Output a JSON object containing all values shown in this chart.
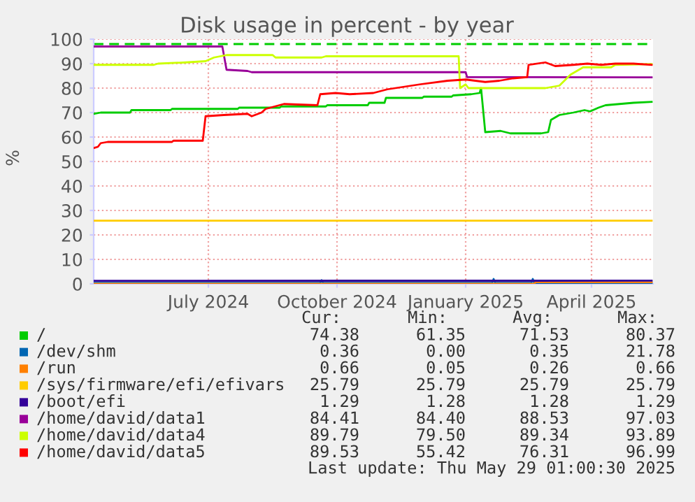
{
  "chart_data": {
    "type": "line",
    "title": "Disk usage in percent - by year",
    "ylabel": "%",
    "xlim": [
      "2024-04-10",
      "2025-05-15"
    ],
    "ylim": [
      0,
      100
    ],
    "yticks": [
      0,
      10,
      20,
      30,
      40,
      50,
      60,
      70,
      80,
      90,
      100
    ],
    "xticks": [
      {
        "value": "2024-07-01",
        "label": "July 2024"
      },
      {
        "value": "2024-10-01",
        "label": "October 2024"
      },
      {
        "value": "2025-01-01",
        "label": "January 2025"
      },
      {
        "value": "2025-04-01",
        "label": "April 2025"
      }
    ],
    "grid": true,
    "legend": "bottom",
    "line_style": "solid",
    "marker": "none",
    "ref_lines": [
      {
        "axis": "y",
        "value": 98,
        "label": null,
        "color": "#00cc00",
        "line_style": "dashed"
      }
    ],
    "series": [
      {
        "name": "/",
        "color": "#00cc00",
        "x": [
          "2024-04-10",
          "2024-04-15",
          "2024-05-06",
          "2024-05-07",
          "2024-06-04",
          "2024-06-05",
          "2024-07-22",
          "2024-07-23",
          "2024-08-21",
          "2024-08-22",
          "2024-09-23",
          "2024-09-24",
          "2024-10-23",
          "2024-10-24",
          "2024-11-04",
          "2024-11-05",
          "2024-12-01",
          "2024-12-02",
          "2024-12-22",
          "2024-12-23",
          "2025-01-05",
          "2025-01-11",
          "2025-01-12",
          "2025-01-15",
          "2025-01-26",
          "2025-02-02",
          "2025-02-24",
          "2025-03-01",
          "2025-03-03",
          "2025-03-09",
          "2025-03-19",
          "2025-03-27",
          "2025-03-31",
          "2025-04-06",
          "2025-04-11",
          "2025-04-21",
          "2025-05-01",
          "2025-05-14"
        ],
        "values": [
          69.5,
          70,
          70,
          71,
          71,
          71.5,
          71.5,
          72,
          72,
          72.5,
          72.5,
          73,
          73,
          74,
          74,
          76,
          76,
          76.5,
          76.5,
          77,
          77.5,
          78,
          80,
          62,
          62.5,
          61.5,
          61.5,
          62,
          67,
          69,
          70,
          71,
          70.5,
          72,
          73,
          73.5,
          74,
          74.4
        ]
      },
      {
        "name": "/dev/shm",
        "color": "#0066b3",
        "x": [
          "2024-04-10",
          "2024-09-19",
          "2024-09-20",
          "2024-09-21",
          "2025-01-20",
          "2025-01-21",
          "2025-01-22",
          "2025-02-17",
          "2025-02-18",
          "2025-02-19",
          "2025-05-14"
        ],
        "values": [
          0.4,
          0.4,
          1.5,
          0.4,
          0.4,
          2,
          0.4,
          0.4,
          2,
          0.4,
          0.4
        ]
      },
      {
        "name": "/run",
        "color": "#ff8000",
        "x": [
          "2024-04-10",
          "2025-02-19",
          "2025-02-20",
          "2025-05-14"
        ],
        "values": [
          0.05,
          0.05,
          0.66,
          0.66
        ]
      },
      {
        "name": "/sys/firmware/efi/efivars",
        "color": "#ffcc00",
        "x": [
          "2024-04-10",
          "2025-05-14"
        ],
        "values": [
          25.79,
          25.79
        ]
      },
      {
        "name": "/boot/efi",
        "color": "#330099",
        "x": [
          "2024-04-10",
          "2025-05-14"
        ],
        "values": [
          1.28,
          1.29
        ]
      },
      {
        "name": "/home/david/data1",
        "color": "#990099",
        "x": [
          "2024-04-10",
          "2024-07-11",
          "2024-07-14",
          "2024-07-29",
          "2024-08-01",
          "2025-01-01",
          "2025-01-02",
          "2025-05-14"
        ],
        "values": [
          97,
          97,
          87.5,
          87,
          86.5,
          86.5,
          84.5,
          84.4
        ]
      },
      {
        "name": "/home/david/data4",
        "color": "#ccff00",
        "x": [
          "2024-04-10",
          "2024-05-23",
          "2024-05-26",
          "2024-06-15",
          "2024-06-29",
          "2024-07-05",
          "2024-07-14",
          "2024-08-16",
          "2024-08-18",
          "2024-09-20",
          "2024-09-23",
          "2024-12-27",
          "2024-12-28",
          "2025-01-01",
          "2025-01-03",
          "2025-02-27",
          "2025-03-09",
          "2025-03-17",
          "2025-03-26",
          "2025-04-15",
          "2025-04-18",
          "2025-05-14"
        ],
        "values": [
          89.5,
          89.5,
          90,
          90.5,
          91,
          92.5,
          93.5,
          93.5,
          92.5,
          92.5,
          93,
          93,
          80,
          81.5,
          80,
          80,
          81,
          85.5,
          88.5,
          88.5,
          89.5,
          89.8
        ]
      },
      {
        "name": "/home/david/data5",
        "color": "#ff0000",
        "x": [
          "2024-04-10",
          "2024-04-13",
          "2024-04-15",
          "2024-04-20",
          "2024-06-05",
          "2024-06-06",
          "2024-06-27",
          "2024-06-29",
          "2024-07-12",
          "2024-07-29",
          "2024-08-01",
          "2024-08-08",
          "2024-08-11",
          "2024-08-24",
          "2024-09-17",
          "2024-09-19",
          "2024-09-30",
          "2024-10-10",
          "2024-10-27",
          "2024-11-06",
          "2024-11-29",
          "2024-12-19",
          "2025-01-01",
          "2025-01-15",
          "2025-01-25",
          "2025-02-04",
          "2025-02-14",
          "2025-02-15",
          "2025-02-27",
          "2025-03-06",
          "2025-03-19",
          "2025-03-29",
          "2025-04-08",
          "2025-04-18",
          "2025-05-01",
          "2025-05-14"
        ],
        "values": [
          55.5,
          56,
          57.5,
          58,
          58,
          58.5,
          58.5,
          68.5,
          69,
          69.5,
          68.5,
          70,
          71.5,
          73.5,
          73,
          77.5,
          78,
          77.5,
          78,
          79.5,
          81.5,
          83,
          83.5,
          82.5,
          83,
          84,
          84.5,
          89.5,
          90.5,
          89,
          89.5,
          90,
          89.5,
          90,
          90,
          89.5
        ]
      }
    ],
    "annotations": [
      "Cur:",
      "Min:",
      "Avg:",
      "Max:",
      "74.38",
      "61.35",
      "71.53",
      "80.37",
      "0.36",
      "0.00",
      "0.35",
      "21.78",
      "0.66",
      "0.05",
      "0.26",
      "0.66",
      "25.79",
      "25.79",
      "25.79",
      "25.79",
      "1.29",
      "1.28",
      "1.28",
      "1.29",
      "84.41",
      "84.40",
      "88.53",
      "97.03",
      "89.79",
      "79.50",
      "89.34",
      "93.89",
      "89.53",
      "55.42",
      "76.31",
      "96.99",
      "Last update: Thu May 29 01:00:30 2025"
    ]
  }
}
